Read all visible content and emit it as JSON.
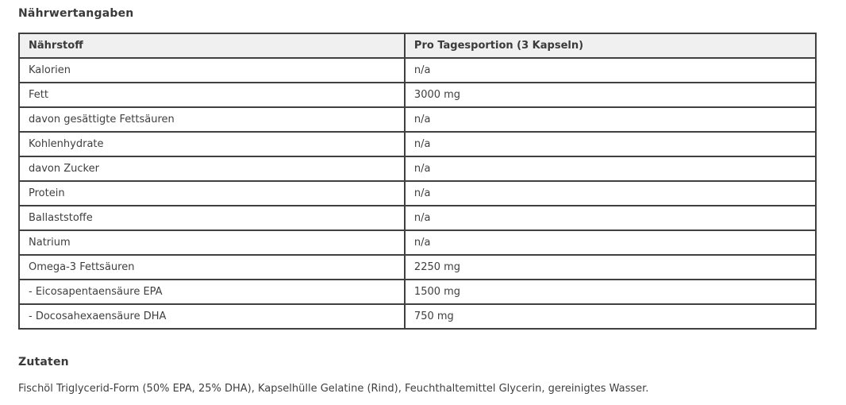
{
  "nutrition": {
    "heading": "Nährwertangaben",
    "table": {
      "headers": [
        "Nährstoff",
        "Pro Tagesportion (3 Kapseln)"
      ],
      "rows": [
        [
          "Kalorien",
          "n/a"
        ],
        [
          "Fett",
          "3000 mg"
        ],
        [
          "davon gesättigte Fettsäuren",
          "n/a"
        ],
        [
          "Kohlenhydrate",
          "n/a"
        ],
        [
          "davon Zucker",
          "n/a"
        ],
        [
          "Protein",
          "n/a"
        ],
        [
          "Ballaststoffe",
          "n/a"
        ],
        [
          "Natrium",
          "n/a"
        ],
        [
          "Omega-3 Fettsäuren",
          "2250 mg"
        ],
        [
          "- Eicosapentaensäure EPA",
          "1500 mg"
        ],
        [
          "- Docosahexaensäure DHA",
          "750 mg"
        ]
      ]
    }
  },
  "ingredients": {
    "heading": "Zutaten",
    "text": "Fischöl Triglycerid-Form (50% EPA, 25% DHA), Kapselhülle Gelatine (Rind), Feuchthaltemittel Glycerin, gereinigtes Wasser."
  },
  "colors": {
    "border": "#404040",
    "header_background": "#f0f0f0",
    "text": "#3f3f3f"
  }
}
